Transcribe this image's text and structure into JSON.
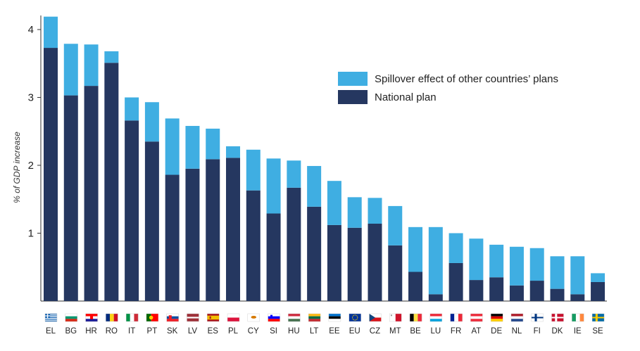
{
  "chart_data": {
    "type": "bar",
    "stacked": true,
    "ylabel": "% of GDP increase",
    "ylim": [
      0,
      4.2
    ],
    "yticks": [
      "1",
      "2",
      "3",
      "4"
    ],
    "grid": false,
    "legend_position": "top-right",
    "categories": [
      "EL",
      "BG",
      "HR",
      "RO",
      "IT",
      "PT",
      "SK",
      "LV",
      "ES",
      "PL",
      "CY",
      "SI",
      "HU",
      "LT",
      "EE",
      "EU",
      "CZ",
      "MT",
      "BE",
      "LU",
      "FR",
      "AT",
      "DE",
      "NL",
      "FI",
      "DK",
      "IE",
      "SE"
    ],
    "series": [
      {
        "name": "National plan",
        "color": "#253760",
        "values": [
          3.73,
          3.03,
          3.17,
          3.51,
          2.66,
          2.35,
          1.86,
          1.95,
          2.09,
          2.11,
          1.63,
          1.29,
          1.67,
          1.39,
          1.12,
          1.08,
          1.14,
          0.82,
          0.43,
          0.1,
          0.56,
          0.31,
          0.35,
          0.23,
          0.3,
          0.18,
          0.1,
          0.28
        ]
      },
      {
        "name": "Spillover effect of other countries’ plans",
        "color": "#3FAEE2",
        "values": [
          0.46,
          0.76,
          0.61,
          0.17,
          0.34,
          0.58,
          0.83,
          0.63,
          0.45,
          0.17,
          0.6,
          0.81,
          0.4,
          0.6,
          0.65,
          0.45,
          0.38,
          0.58,
          0.66,
          0.99,
          0.44,
          0.61,
          0.48,
          0.57,
          0.48,
          0.48,
          0.56,
          0.13
        ]
      }
    ]
  },
  "legend": [
    {
      "label": "Spillover effect of other countries’ plans",
      "color": "#3FAEE2"
    },
    {
      "label": "National plan",
      "color": "#253760"
    }
  ],
  "flags": {
    "EL": "flag-greece-icon",
    "BG": "flag-bulgaria-icon",
    "HR": "flag-croatia-icon",
    "RO": "flag-romania-icon",
    "IT": "flag-italy-icon",
    "PT": "flag-portugal-icon",
    "SK": "flag-slovakia-icon",
    "LV": "flag-latvia-icon",
    "ES": "flag-spain-icon",
    "PL": "flag-poland-icon",
    "CY": "flag-cyprus-icon",
    "SI": "flag-slovenia-icon",
    "HU": "flag-hungary-icon",
    "LT": "flag-lithuania-icon",
    "EE": "flag-estonia-icon",
    "EU": "flag-eu-icon",
    "CZ": "flag-czechia-icon",
    "MT": "flag-malta-icon",
    "BE": "flag-belgium-icon",
    "LU": "flag-luxembourg-icon",
    "FR": "flag-france-icon",
    "AT": "flag-austria-icon",
    "DE": "flag-germany-icon",
    "NL": "flag-netherlands-icon",
    "FI": "flag-finland-icon",
    "DK": "flag-denmark-icon",
    "IE": "flag-ireland-icon",
    "SE": "flag-sweden-icon"
  }
}
